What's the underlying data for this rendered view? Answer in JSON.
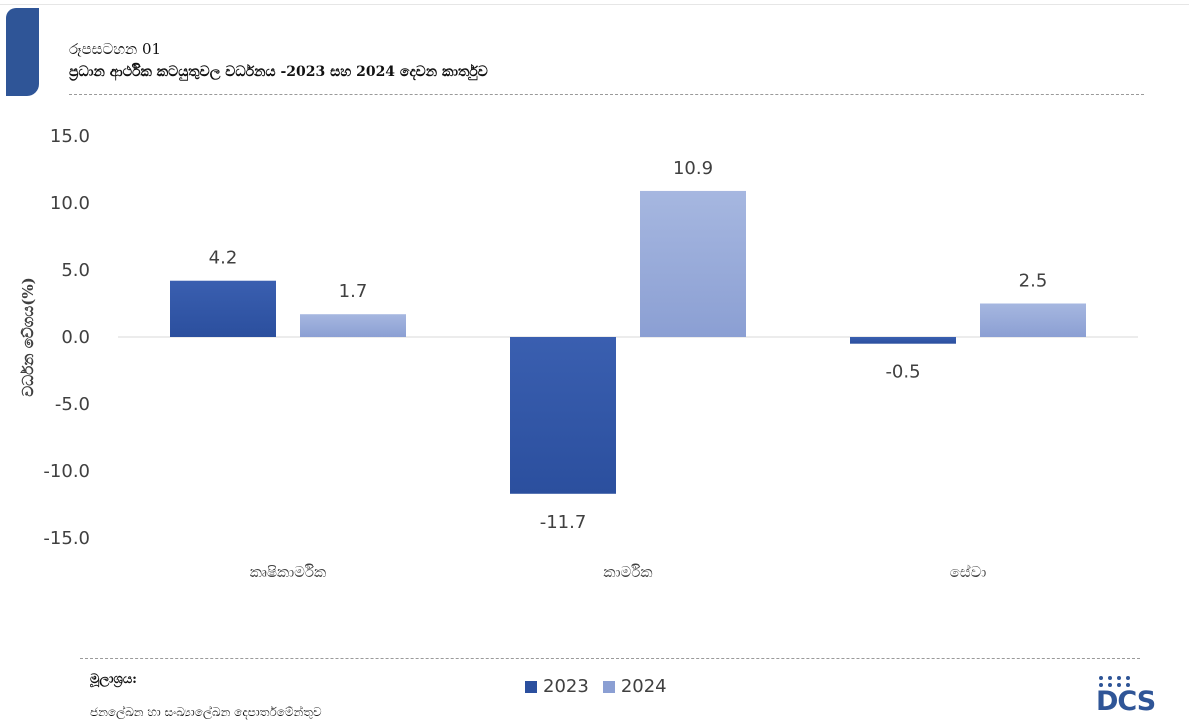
{
  "figure": {
    "label": "රූපසටහන 01",
    "title": "ප්‍රධාන ආර්ථික කටයුතුවල වර්ධනය -2023 සහ 2024 දෙවන කාර්තුව"
  },
  "source": {
    "label": "මූලාශ්‍රය:",
    "text": "ජනලේඛන හා සංඛ්‍යාලේඛන දෙපාර්තමේන්තුව"
  },
  "logo": {
    "text": "DCS"
  },
  "colors": {
    "accent": "#2f5597",
    "series_2023_top": "#3a5fb0",
    "series_2023_bottom": "#2b4f9e",
    "series_2024_top": "#a6b7e0",
    "series_2024_bottom": "#8b9fd3",
    "text": "#404040",
    "axis_line": "#d9d9d9"
  },
  "chart_data": {
    "type": "bar",
    "categories": [
      "කෘෂිකාර්මික",
      "කාර්මික",
      "සේවා"
    ],
    "series": [
      {
        "name": "2023",
        "values": [
          4.2,
          -11.7,
          -0.5
        ]
      },
      {
        "name": "2024",
        "values": [
          1.7,
          10.9,
          2.5
        ]
      }
    ],
    "ylabel": "වර්ධන වේගය(%)",
    "ylim": [
      -15,
      15
    ],
    "yticks": [
      "15.0",
      "10.0",
      "5.0",
      "0.0",
      "-5.0",
      "-10.0",
      "-15.0"
    ],
    "data_labels": [
      [
        "4.2",
        "-11.7",
        "-0.5"
      ],
      [
        "1.7",
        "10.9",
        "2.5"
      ]
    ],
    "legend_position": "bottom",
    "grid": false
  }
}
